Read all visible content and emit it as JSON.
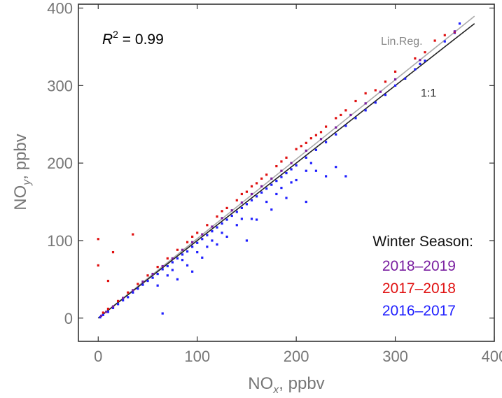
{
  "chart_data": {
    "type": "scatter",
    "title": "",
    "xlabel": {
      "main": "NO",
      "sub": "x",
      "unit": ", ppbv"
    },
    "ylabel": {
      "main": "NO",
      "sub": "y",
      "unit": ", ppbv"
    },
    "xlim": [
      -20,
      400
    ],
    "ylim": [
      -30,
      405
    ],
    "xticks": [
      0,
      100,
      200,
      300,
      400
    ],
    "yticks": [
      0,
      100,
      200,
      300,
      400
    ],
    "grid": false,
    "legend": {
      "title": "Winter Season:",
      "placement": "bottom-right"
    },
    "annotations": {
      "r2_label": "R",
      "r2_exponent": "2",
      "r2_value": " = 0.99"
    },
    "reference_lines": [
      {
        "name": "Lin.Reg.",
        "slope": 1.025,
        "intercept": 0,
        "x_range": [
          0,
          380
        ],
        "color": "#aaaaaa"
      },
      {
        "name": "1:1",
        "slope": 1.0,
        "intercept": 0,
        "x_range": [
          0,
          380
        ],
        "color": "#222222"
      }
    ],
    "series": [
      {
        "name": "2016–2017",
        "color": "#1f1fff",
        "points": [
          [
            2,
            1
          ],
          [
            5,
            4
          ],
          [
            10,
            8
          ],
          [
            15,
            13
          ],
          [
            20,
            18
          ],
          [
            25,
            23
          ],
          [
            30,
            27
          ],
          [
            35,
            33
          ],
          [
            40,
            38
          ],
          [
            45,
            43
          ],
          [
            50,
            48
          ],
          [
            55,
            52
          ],
          [
            60,
            57
          ],
          [
            65,
            63
          ],
          [
            70,
            67
          ],
          [
            75,
            72
          ],
          [
            80,
            77
          ],
          [
            85,
            82
          ],
          [
            90,
            86
          ],
          [
            95,
            92
          ],
          [
            100,
            97
          ],
          [
            105,
            102
          ],
          [
            110,
            107
          ],
          [
            115,
            112
          ],
          [
            120,
            117
          ],
          [
            125,
            122
          ],
          [
            130,
            127
          ],
          [
            135,
            132
          ],
          [
            140,
            137
          ],
          [
            145,
            142
          ],
          [
            150,
            147
          ],
          [
            155,
            152
          ],
          [
            160,
            157
          ],
          [
            165,
            162
          ],
          [
            170,
            167
          ],
          [
            175,
            172
          ],
          [
            180,
            177
          ],
          [
            185,
            182
          ],
          [
            190,
            187
          ],
          [
            195,
            192
          ],
          [
            200,
            197
          ],
          [
            210,
            207
          ],
          [
            220,
            217
          ],
          [
            230,
            227
          ],
          [
            240,
            237
          ],
          [
            250,
            248
          ],
          [
            260,
            258
          ],
          [
            270,
            268
          ],
          [
            280,
            278
          ],
          [
            290,
            288
          ],
          [
            300,
            300
          ],
          [
            310,
            309
          ],
          [
            320,
            321
          ],
          [
            325,
            328
          ],
          [
            330,
            332
          ],
          [
            350,
            357
          ],
          [
            360,
            368
          ],
          [
            365,
            380
          ],
          [
            60,
            42
          ],
          [
            65,
            6
          ],
          [
            70,
            55
          ],
          [
            75,
            62
          ],
          [
            80,
            50
          ],
          [
            85,
            75
          ],
          [
            90,
            68
          ],
          [
            95,
            60
          ],
          [
            100,
            85
          ],
          [
            105,
            78
          ],
          [
            110,
            92
          ],
          [
            115,
            100
          ],
          [
            120,
            95
          ],
          [
            125,
            110
          ],
          [
            130,
            105
          ],
          [
            140,
            120
          ],
          [
            145,
            128
          ],
          [
            150,
            100
          ],
          [
            155,
            128
          ],
          [
            160,
            127
          ],
          [
            170,
            150
          ],
          [
            175,
            140
          ],
          [
            180,
            160
          ],
          [
            185,
            168
          ],
          [
            190,
            155
          ],
          [
            195,
            175
          ],
          [
            200,
            178
          ],
          [
            210,
            190
          ],
          [
            215,
            200
          ],
          [
            220,
            190
          ],
          [
            240,
            195
          ],
          [
            250,
            183
          ],
          [
            230,
            183
          ],
          [
            210,
            150
          ]
        ]
      },
      {
        "name": "2017–2018",
        "color": "#e01010",
        "points": [
          [
            0,
            68
          ],
          [
            0,
            102
          ],
          [
            10,
            48
          ],
          [
            15,
            85
          ],
          [
            35,
            108
          ],
          [
            5,
            7
          ],
          [
            10,
            12
          ],
          [
            20,
            22
          ],
          [
            30,
            33
          ],
          [
            40,
            44
          ],
          [
            50,
            55
          ],
          [
            60,
            66
          ],
          [
            70,
            77
          ],
          [
            80,
            88
          ],
          [
            90,
            98
          ],
          [
            100,
            110
          ],
          [
            110,
            120
          ],
          [
            120,
            131
          ],
          [
            130,
            142
          ],
          [
            140,
            152
          ],
          [
            150,
            163
          ],
          [
            160,
            174
          ],
          [
            170,
            185
          ],
          [
            180,
            196
          ],
          [
            190,
            207
          ],
          [
            200,
            218
          ],
          [
            210,
            226
          ],
          [
            220,
            236
          ],
          [
            230,
            247
          ],
          [
            240,
            258
          ],
          [
            250,
            268
          ],
          [
            260,
            280
          ],
          [
            270,
            290
          ],
          [
            280,
            294
          ],
          [
            290,
            305
          ],
          [
            300,
            318
          ],
          [
            320,
            335
          ],
          [
            330,
            343
          ],
          [
            340,
            358
          ],
          [
            350,
            365
          ],
          [
            360,
            369
          ],
          [
            95,
            105
          ],
          [
            125,
            138
          ],
          [
            145,
            160
          ],
          [
            155,
            170
          ],
          [
            165,
            180
          ],
          [
            185,
            202
          ],
          [
            205,
            222
          ],
          [
            215,
            232
          ],
          [
            225,
            240
          ],
          [
            245,
            262
          ]
        ]
      },
      {
        "name": "2018–2019",
        "color": "#7a1fa0",
        "points": [
          [
            3,
            3
          ],
          [
            8,
            8
          ],
          [
            15,
            15
          ],
          [
            25,
            26
          ],
          [
            35,
            36
          ],
          [
            45,
            47
          ],
          [
            55,
            57
          ],
          [
            65,
            67
          ],
          [
            75,
            77
          ],
          [
            85,
            88
          ],
          [
            95,
            98
          ],
          [
            105,
            108
          ],
          [
            115,
            118
          ],
          [
            125,
            129
          ],
          [
            135,
            139
          ],
          [
            145,
            149
          ],
          [
            155,
            160
          ],
          [
            165,
            170
          ],
          [
            175,
            180
          ],
          [
            185,
            190
          ],
          [
            195,
            200
          ],
          [
            210,
            216
          ],
          [
            225,
            231
          ],
          [
            240,
            246
          ],
          [
            255,
            262
          ],
          [
            270,
            277
          ],
          [
            285,
            292
          ],
          [
            300,
            308
          ],
          [
            325,
            333
          ],
          [
            360,
            370
          ]
        ]
      }
    ]
  }
}
